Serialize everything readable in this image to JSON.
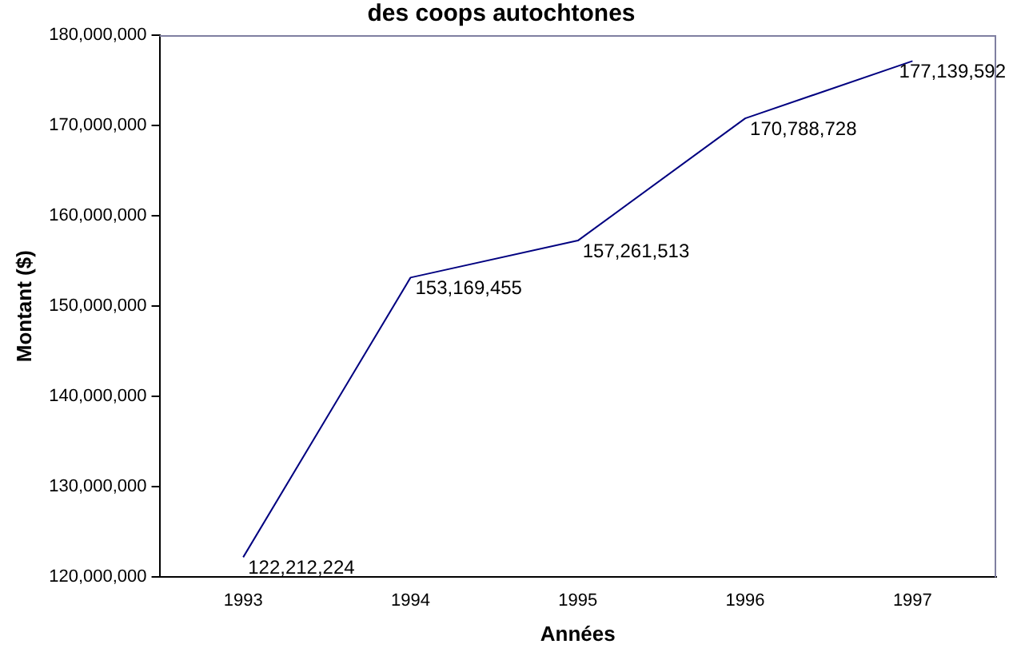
{
  "chart_data": {
    "type": "line",
    "title": "des coops autochtones",
    "xlabel": "Années",
    "ylabel": "Montant ($)",
    "categories": [
      "1993",
      "1994",
      "1995",
      "1996",
      "1997"
    ],
    "series": [
      {
        "color": "#000080",
        "values": [
          122212224,
          153169455,
          157261513,
          170788728,
          177139592
        ],
        "value_labels": [
          "122,212,224",
          "153,169,455",
          "157,261,513",
          "170,788,728",
          "177,139,592"
        ]
      }
    ],
    "ylim": [
      120000000,
      180000000
    ],
    "yticks": [
      {
        "value": 120000000,
        "label": "120,000,000"
      },
      {
        "value": 130000000,
        "label": "130,000,000"
      },
      {
        "value": 140000000,
        "label": "140,000,000"
      },
      {
        "value": 150000000,
        "label": "150,000,000"
      },
      {
        "value": 160000000,
        "label": "160,000,000"
      },
      {
        "value": 170000000,
        "label": "170,000,000"
      },
      {
        "value": 180000000,
        "label": "180,000,000"
      }
    ],
    "grid": false,
    "legend": false,
    "marker": "none",
    "line_style": "solid"
  }
}
